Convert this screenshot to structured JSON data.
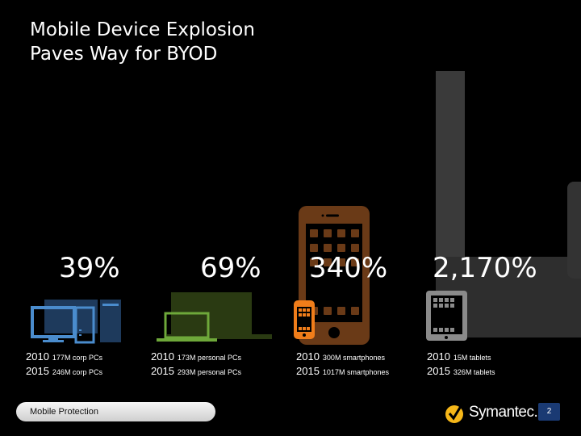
{
  "slide": {
    "title_line1": "Mobile Device Explosion",
    "title_line2": "Paves Way for BYOD",
    "footer_label": "Mobile Protection",
    "logo_text": "Symantec.",
    "page_number": "2"
  },
  "colors": {
    "pc_blue": "#4a8ccd",
    "laptop_green": "#6ea83a",
    "phone_orange": "#f07d1a",
    "phone_brown": "#6a3a17",
    "tablet_gray": "#8a8a8a",
    "symantec_yellow": "#f6b719",
    "page_badge": "#1a3a73"
  },
  "stats": [
    {
      "percent": "39%",
      "year1": "2010",
      "val1": "177M  corp PCs",
      "year2": "2015",
      "val2": "246M  corp PCs",
      "icon": "desktop-pc-icon"
    },
    {
      "percent": "69%",
      "year1": "2010",
      "val1": "173M  personal PCs",
      "year2": "2015",
      "val2": "293M personal PCs",
      "icon": "laptop-icon"
    },
    {
      "percent": "340%",
      "year1": "2010",
      "val1": "300M smartphones",
      "year2": "2015",
      "val2": "1017M smartphones",
      "icon": "smartphone-icon"
    },
    {
      "percent": "2,170%",
      "year1": "2010",
      "val1": "15M tablets",
      "year2": "2015",
      "val2": "326M tablets",
      "icon": "tablet-icon"
    }
  ]
}
